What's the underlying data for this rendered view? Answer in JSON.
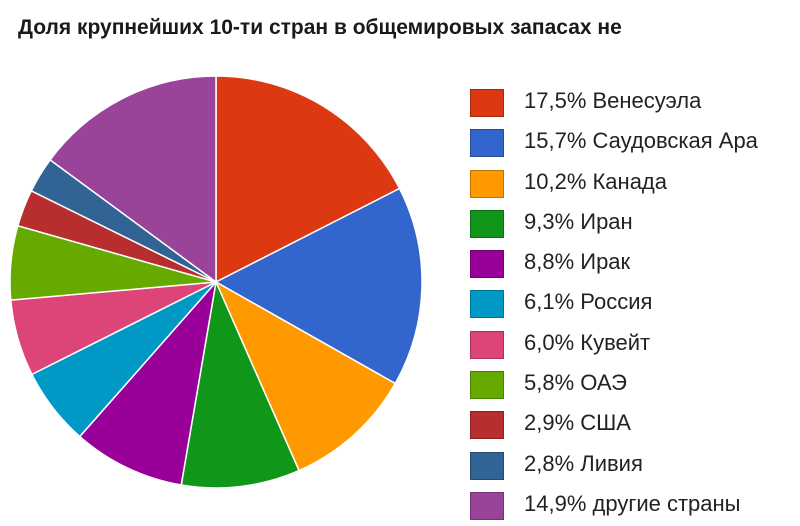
{
  "chart_data": {
    "type": "pie",
    "title": "Доля крупнейших 10-ти стран в общемировых запасах не",
    "legend_position": "right",
    "slices": [
      {
        "label": "17,5% Венесуэла",
        "value": 17.5,
        "color": "#dc3912"
      },
      {
        "label": "15,7% Саудовская Ара",
        "value": 15.7,
        "color": "#3366cc"
      },
      {
        "label": "10,2% Канада",
        "value": 10.2,
        "color": "#ff9900"
      },
      {
        "label": "9,3% Иран",
        "value": 9.3,
        "color": "#109618"
      },
      {
        "label": "8,8% Ирак",
        "value": 8.8,
        "color": "#990099"
      },
      {
        "label": "6,1% Россия",
        "value": 6.1,
        "color": "#0099c6"
      },
      {
        "label": "6,0% Кувейт",
        "value": 6.0,
        "color": "#dd4477"
      },
      {
        "label": "5,8% ОАЭ",
        "value": 5.8,
        "color": "#66aa00"
      },
      {
        "label": "2,9% США",
        "value": 2.9,
        "color": "#b82e2e"
      },
      {
        "label": "2,8% Ливия",
        "value": 2.8,
        "color": "#316395"
      },
      {
        "label": "14,9% другие страны",
        "value": 14.9,
        "color": "#994499"
      }
    ]
  }
}
